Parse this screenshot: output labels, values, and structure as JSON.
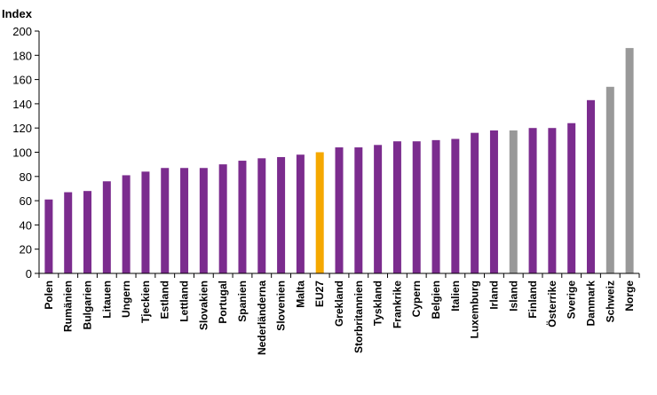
{
  "chart_data": {
    "type": "bar",
    "title": "",
    "xlabel": "",
    "ylabel": "Index",
    "ylim": [
      0,
      200
    ],
    "yticks": [
      0,
      20,
      40,
      60,
      80,
      100,
      120,
      140,
      160,
      180,
      200
    ],
    "grid": false,
    "legend": "none",
    "categories": [
      "Polen",
      "Rumänien",
      "Bulgarien",
      "Litauen",
      "Ungern",
      "Tjeckien",
      "Estland",
      "Lettland",
      "Slovakien",
      "Portugal",
      "Spanien",
      "Nederländerna",
      "Slovenien",
      "Malta",
      "EU27",
      "Grekland",
      "Storbritannien",
      "Tyskland",
      "Frankrike",
      "Cypern",
      "Belgien",
      "Italien",
      "Luxemburg",
      "Irland",
      "Island",
      "Finland",
      "Österrike",
      "Sverige",
      "Danmark",
      "Schweiz",
      "Norge"
    ],
    "values": [
      61,
      67,
      68,
      76,
      81,
      84,
      87,
      87,
      87,
      90,
      93,
      95,
      96,
      98,
      100,
      104,
      104,
      106,
      109,
      109,
      110,
      111,
      116,
      118,
      118,
      120,
      120,
      124,
      143,
      154,
      186
    ],
    "bar_colors": [
      "#7b2c8e",
      "#7b2c8e",
      "#7b2c8e",
      "#7b2c8e",
      "#7b2c8e",
      "#7b2c8e",
      "#7b2c8e",
      "#7b2c8e",
      "#7b2c8e",
      "#7b2c8e",
      "#7b2c8e",
      "#7b2c8e",
      "#7b2c8e",
      "#7b2c8e",
      "#f5a800",
      "#7b2c8e",
      "#7b2c8e",
      "#7b2c8e",
      "#7b2c8e",
      "#7b2c8e",
      "#7b2c8e",
      "#7b2c8e",
      "#7b2c8e",
      "#7b2c8e",
      "#999999",
      "#7b2c8e",
      "#7b2c8e",
      "#7b2c8e",
      "#7b2c8e",
      "#999999",
      "#999999"
    ]
  }
}
